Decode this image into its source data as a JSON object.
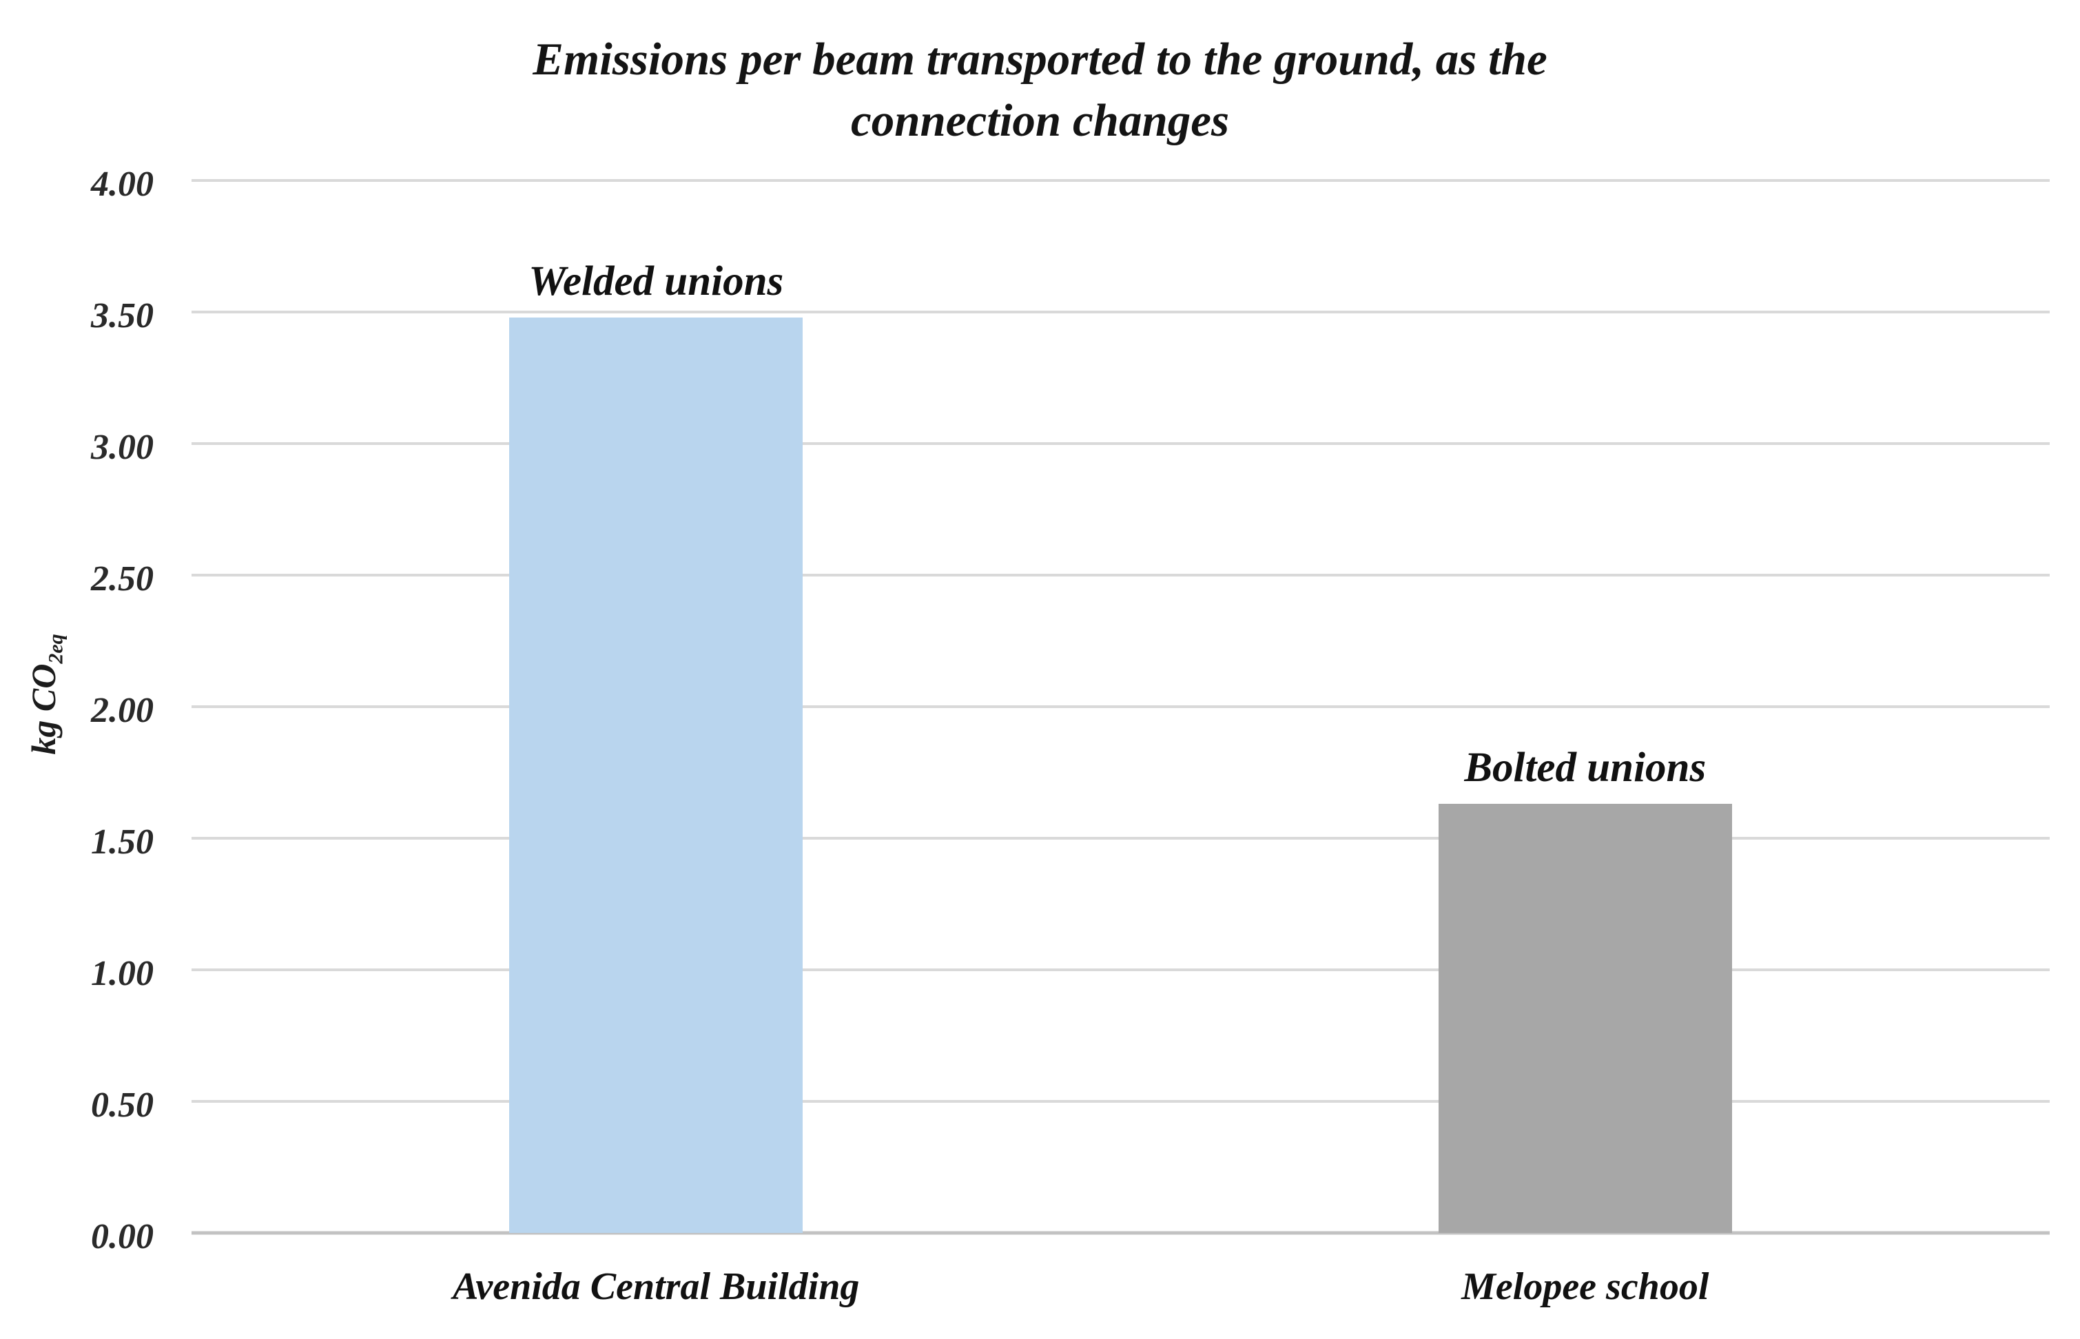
{
  "page": {
    "background": "#ffffff"
  },
  "chart_data": {
    "type": "bar",
    "title": "Emissions per beam transported to the ground, as the connection changes",
    "title_lines": [
      "Emissions per beam transported to the ground, as the",
      "connection changes"
    ],
    "ylabel": "kg CO2eq",
    "ylabel_main": "kg CO",
    "ylabel_sub": "2eq",
    "xlabel": "",
    "ylim": [
      0,
      4
    ],
    "ytick_step": 0.5,
    "yticks": [
      "4.00",
      "3.50",
      "3.00",
      "2.50",
      "2.00",
      "1.50",
      "1.00",
      "0.50",
      "0.00"
    ],
    "grid": true,
    "legend_position": "none",
    "categories": [
      "Avenida Central Building",
      "Melopee school"
    ],
    "bars": [
      {
        "category": "Avenida Central Building",
        "label": "Welded unions",
        "value": 3.48,
        "color": "#B9D5EE"
      },
      {
        "category": "Melopee school",
        "label": "Bolted unions",
        "value": 1.63,
        "color": "#A7A7A7"
      }
    ],
    "colors": {
      "gridline": "#d9d9d9",
      "axis_line": "#c2c2c2",
      "text": "#141414"
    }
  }
}
